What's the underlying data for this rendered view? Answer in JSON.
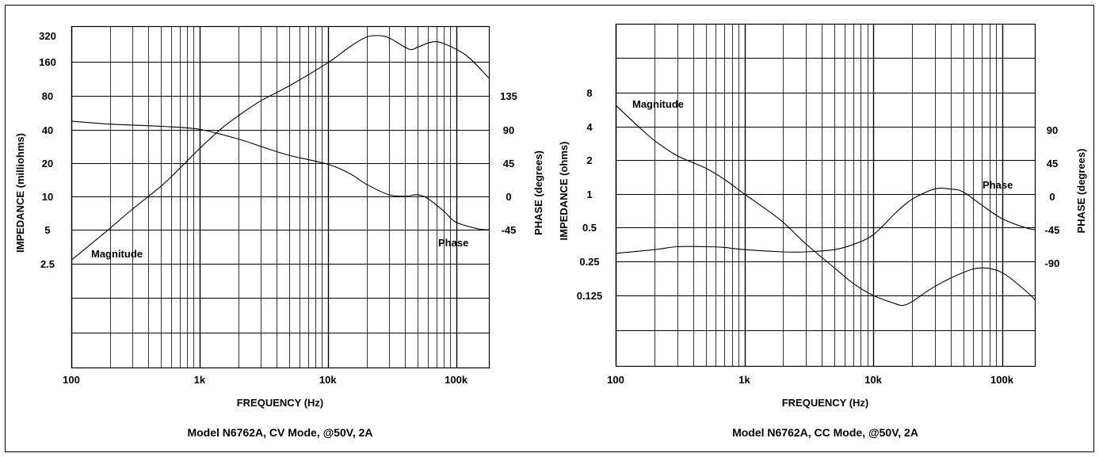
{
  "chart_data": [
    {
      "type": "line",
      "title": "Model N6762A, CV Mode, @50V, 2A",
      "xlabel": "FREQUENCY (Hz)",
      "ylabel_left": "IMPEDANCE (milliohms)",
      "ylabel_right": "PHASE (degrees)",
      "x_scale": "log",
      "xlim": [
        100,
        180000
      ],
      "x_ticks": [
        {
          "value": 100,
          "label": "100"
        },
        {
          "value": 1000,
          "label": "1k"
        },
        {
          "value": 10000,
          "label": "10k"
        },
        {
          "value": 100000,
          "label": "100k"
        }
      ],
      "y_left_scale": "log2",
      "y_left_ticks": [
        {
          "value": 320,
          "label": "320"
        },
        {
          "value": 160,
          "label": "160"
        },
        {
          "value": 80,
          "label": "80"
        },
        {
          "value": 40,
          "label": "40"
        },
        {
          "value": 20,
          "label": "20"
        },
        {
          "value": 10,
          "label": "10"
        },
        {
          "value": 5,
          "label": "5"
        },
        {
          "value": 2.5,
          "label": "2.5"
        }
      ],
      "y_right_ticks": [
        {
          "value": 135,
          "label": "135"
        },
        {
          "value": 90,
          "label": "90"
        },
        {
          "value": 45,
          "label": "45"
        },
        {
          "value": 0,
          "label": "0"
        },
        {
          "value": -45,
          "label": "-45"
        }
      ],
      "grid": true,
      "annotations": {
        "magnitude": "Magnitude",
        "phase": "Phase"
      },
      "series": [
        {
          "name": "Magnitude",
          "axis": "left",
          "x": [
            100,
            150,
            200,
            300,
            500,
            700,
            1000,
            1500,
            2000,
            3000,
            5000,
            10000,
            15000,
            20000,
            25000,
            30000,
            40000,
            45000,
            50000,
            65000,
            80000,
            120000,
            180000
          ],
          "y": [
            2.7,
            4.0,
            5.3,
            8.0,
            13,
            19,
            29,
            45,
            58,
            80,
            110,
            180,
            255,
            310,
            320,
            305,
            250,
            238,
            250,
            280,
            270,
            210,
            130
          ]
        },
        {
          "name": "Phase",
          "axis": "right",
          "x": [
            100,
            200,
            500,
            1000,
            2000,
            3000,
            5000,
            10000,
            15000,
            20000,
            30000,
            40000,
            50000,
            60000,
            80000,
            100000,
            150000,
            180000
          ],
          "y": [
            101,
            97,
            94,
            90,
            77,
            67,
            55,
            43,
            30,
            16,
            2,
            0,
            2,
            -3,
            -20,
            -35,
            -44,
            -45
          ]
        }
      ]
    },
    {
      "type": "line",
      "title": "Model N6762A, CC Mode, @50V, 2A",
      "xlabel": "FREQUENCY (Hz)",
      "ylabel_left": "IMPEDANCE (ohms)",
      "ylabel_right": "PHASE (degrees)",
      "x_scale": "log",
      "xlim": [
        100,
        180000
      ],
      "x_ticks": [
        {
          "value": 100,
          "label": "100"
        },
        {
          "value": 1000,
          "label": "1k"
        },
        {
          "value": 10000,
          "label": "10k"
        },
        {
          "value": 100000,
          "label": "100k"
        }
      ],
      "y_left_scale": "log2",
      "y_left_ticks": [
        {
          "value": 8,
          "label": "8"
        },
        {
          "value": 4,
          "label": "4"
        },
        {
          "value": 2,
          "label": "2"
        },
        {
          "value": 1,
          "label": "1"
        },
        {
          "value": 0.5,
          "label": "0.5"
        },
        {
          "value": 0.25,
          "label": "0.25"
        },
        {
          "value": 0.125,
          "label": "0.125"
        }
      ],
      "y_right_ticks": [
        {
          "value": 90,
          "label": "90"
        },
        {
          "value": 45,
          "label": "45"
        },
        {
          "value": 0,
          "label": "0"
        },
        {
          "value": -45,
          "label": "-45"
        },
        {
          "value": -90,
          "label": "-90"
        }
      ],
      "grid": true,
      "annotations": {
        "magnitude": "Magnitude",
        "phase": "Phase"
      },
      "series": [
        {
          "name": "Magnitude",
          "axis": "left",
          "x": [
            100,
            150,
            200,
            300,
            500,
            700,
            1000,
            1500,
            2000,
            3000,
            5000,
            7000,
            10000,
            15000,
            17000,
            20000,
            30000,
            50000,
            70000,
            100000,
            150000,
            180000
          ],
          "y": [
            6.2,
            4.0,
            3.0,
            2.2,
            1.7,
            1.35,
            1.0,
            0.72,
            0.56,
            0.36,
            0.22,
            0.16,
            0.125,
            0.105,
            0.102,
            0.11,
            0.15,
            0.2,
            0.22,
            0.2,
            0.14,
            0.115
          ]
        },
        {
          "name": "Phase",
          "axis": "right",
          "x": [
            100,
            200,
            300,
            500,
            700,
            1000,
            2000,
            3000,
            5000,
            7000,
            10000,
            15000,
            20000,
            30000,
            40000,
            50000,
            70000,
            100000,
            150000,
            180000
          ],
          "y": [
            -77,
            -72,
            -68,
            -68,
            -69,
            -72,
            -75,
            -75,
            -72,
            -65,
            -52,
            -22,
            -4,
            10,
            10,
            6,
            -12,
            -30,
            -42,
            -45
          ]
        }
      ]
    }
  ]
}
